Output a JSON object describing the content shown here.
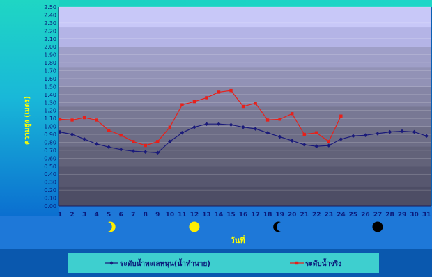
{
  "chart_data": {
    "type": "line",
    "xlabel": "วันที่",
    "ylabel": "ความสูง (เมตร)",
    "ylim": [
      0,
      2.5
    ],
    "ytick_step": 0.1,
    "x": [
      1,
      2,
      3,
      4,
      5,
      6,
      7,
      8,
      9,
      10,
      11,
      12,
      13,
      14,
      15,
      16,
      17,
      18,
      19,
      20,
      21,
      22,
      23,
      24,
      25,
      26,
      27,
      28,
      29,
      30,
      31
    ],
    "series": [
      {
        "name": "ระดับน้ำทะเลหนุน(น้ำทำนาย)",
        "color": "#1a1a7a",
        "marker": "diamond",
        "values": [
          0.93,
          0.9,
          0.84,
          0.78,
          0.74,
          0.71,
          0.69,
          0.68,
          0.67,
          0.81,
          0.92,
          0.99,
          1.03,
          1.03,
          1.02,
          0.99,
          0.97,
          0.92,
          0.87,
          0.82,
          0.77,
          0.75,
          0.76,
          0.84,
          0.88,
          0.89,
          0.91,
          0.93,
          0.94,
          0.93,
          0.88
        ]
      },
      {
        "name": "ระดับน้ำจริง",
        "color": "#e8201a",
        "marker": "square",
        "values": [
          1.09,
          1.08,
          1.11,
          1.08,
          0.95,
          0.89,
          0.81,
          0.76,
          0.81,
          0.99,
          1.27,
          1.31,
          1.36,
          1.43,
          1.45,
          1.25,
          1.29,
          1.08,
          1.09,
          1.16,
          0.9,
          0.92,
          0.81,
          1.13,
          null,
          null,
          null,
          null,
          null,
          null,
          null
        ]
      }
    ],
    "moon_phases": [
      {
        "day": 5,
        "phase": "waxing-crescent-moon-icon"
      },
      {
        "day": 12,
        "phase": "full-moon-icon"
      },
      {
        "day": 19,
        "phase": "waning-crescent-moon-icon"
      },
      {
        "day": 27,
        "phase": "new-moon-icon"
      }
    ],
    "colors": {
      "moon": "#ffee00",
      "new_moon": "#000000",
      "plot_top": "#c8c8f8",
      "plot_bottom": "#4a4a62",
      "axis_panel": "#1e78d8",
      "legend_bg": "#3ecfcf"
    }
  }
}
